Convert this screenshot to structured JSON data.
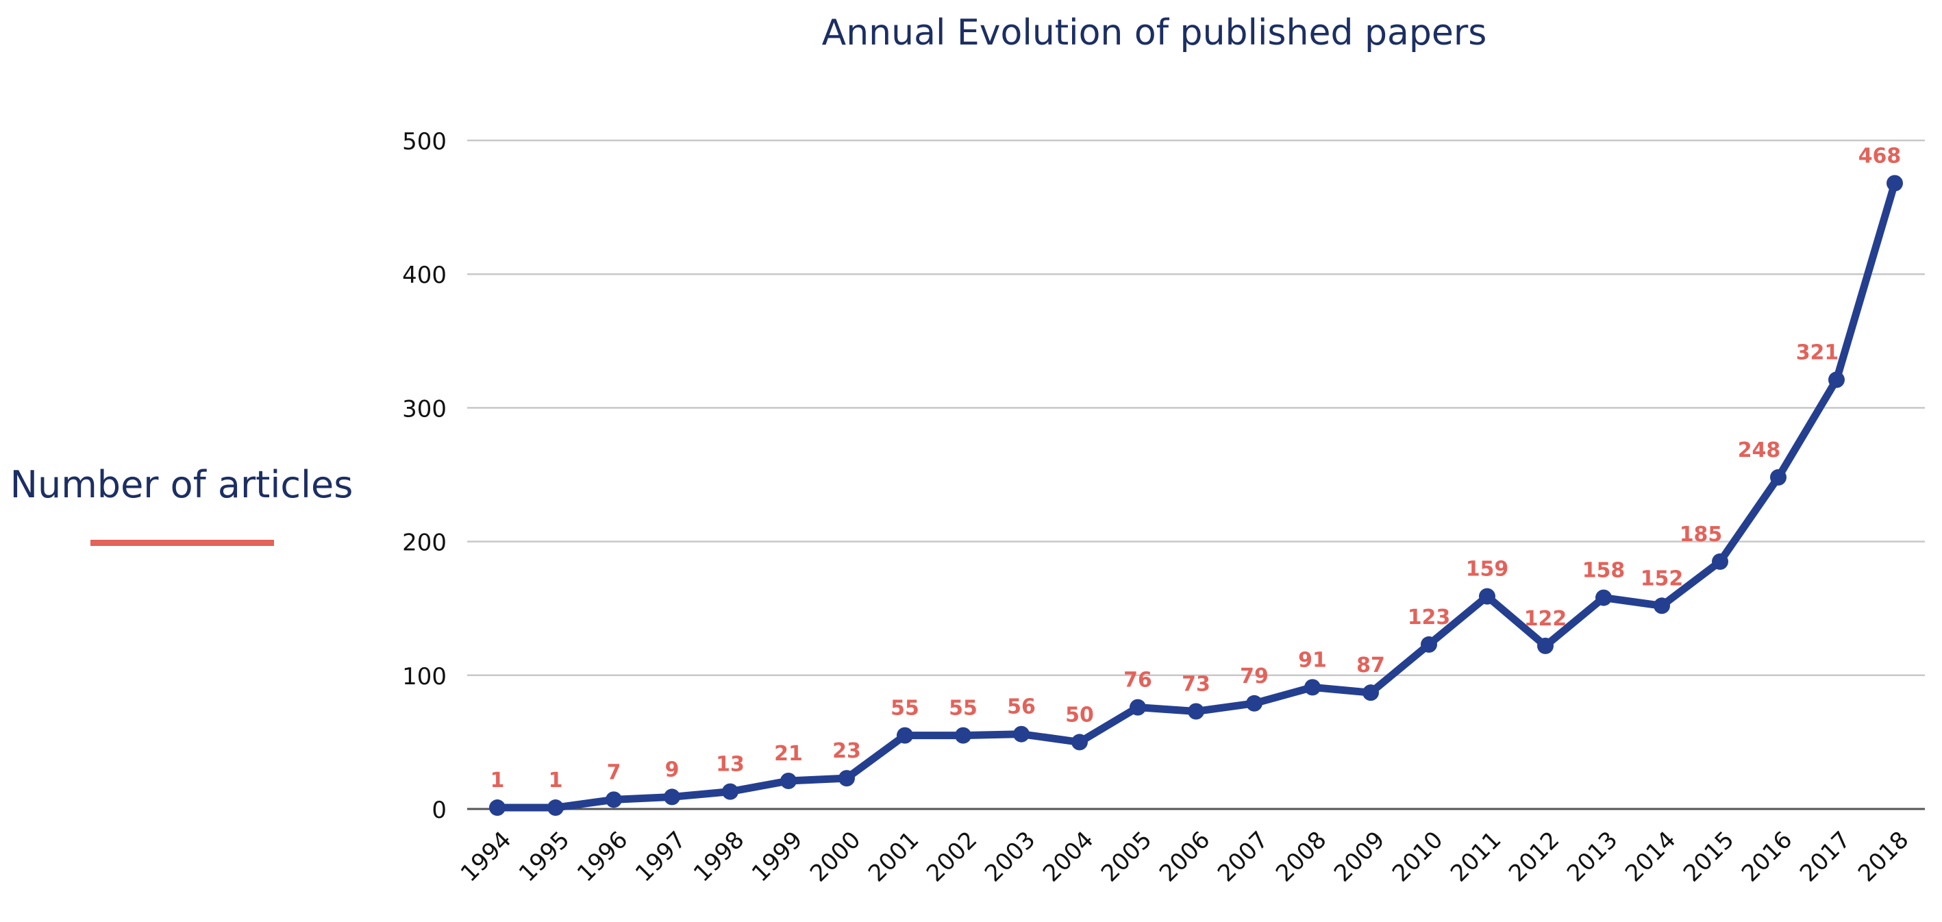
{
  "chart_data": {
    "type": "line",
    "title": "Annual Evolution of published papers",
    "xlabel": "",
    "ylabel": "Number of articles",
    "ylim": [
      0,
      500
    ],
    "yticks": [
      0,
      100,
      200,
      300,
      400,
      500
    ],
    "grid": true,
    "categories": [
      "1994",
      "1995",
      "1996",
      "1997",
      "1998",
      "1999",
      "2000",
      "2001",
      "2002",
      "2003",
      "2004",
      "2005",
      "2006",
      "2007",
      "2008",
      "2009",
      "2010",
      "2011",
      "2012",
      "2013",
      "2014",
      "2015",
      "2016",
      "2017",
      "2018"
    ],
    "series": [
      {
        "name": "Number of articles",
        "values": [
          1,
          1,
          7,
          9,
          13,
          21,
          23,
          55,
          55,
          56,
          50,
          76,
          73,
          79,
          91,
          87,
          123,
          159,
          122,
          158,
          152,
          185,
          248,
          321,
          468
        ]
      }
    ],
    "colors": {
      "line": "#243f8f",
      "title": "#1c2f63",
      "data_label": "#e3625a",
      "ylabel_underline": "#e3625a",
      "grid": "#c8c8c8",
      "axis": "#555555"
    }
  }
}
